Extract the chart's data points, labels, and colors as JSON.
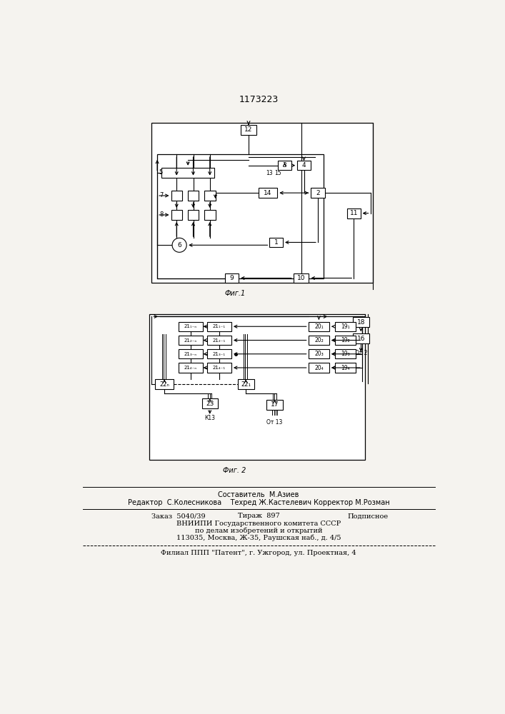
{
  "title": "1173223",
  "fig1_caption": "Фиг.1",
  "fig2_caption": "Фиг. 2",
  "footer_line1": "Составитель  М.Азиев",
  "footer_line2": "Редактор  С.Колесникова    Техред Ж.Кастелевич Корректор М.Розман",
  "footer_line3a": "Заказ  5040/39",
  "footer_line3b": "Тираж  897",
  "footer_line3c": "Подписное",
  "footer_line4": "ВНИИПИ Государственного комитета СССР",
  "footer_line5": "по делам изобретений и открытий",
  "footer_line6": "113035, Москва, Ж-35, Раушская наб., д. 4/5",
  "footer_line7": "Филиал ППП \"Патент\", г. Ужгород, ул. Проектная, 4",
  "bg_color": "#f5f3ef"
}
